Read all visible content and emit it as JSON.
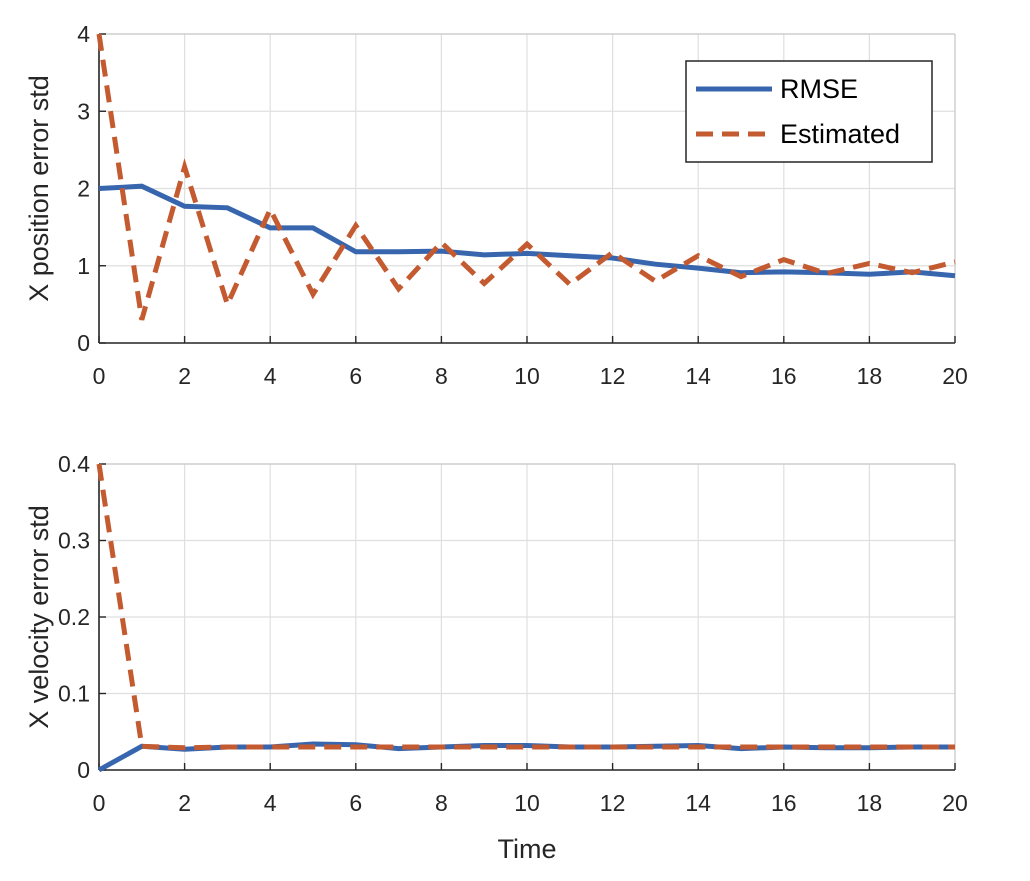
{
  "chart_data": [
    {
      "type": "line",
      "xlabel": "",
      "ylabel": "X position error std",
      "xlim": [
        0,
        20
      ],
      "ylim": [
        0,
        4
      ],
      "xticks": [
        "0",
        "2",
        "4",
        "6",
        "8",
        "10",
        "12",
        "14",
        "16",
        "18",
        "20"
      ],
      "yticks": [
        "0",
        "1",
        "2",
        "3",
        "4"
      ],
      "grid": true,
      "legend_placement": "top-right",
      "series": [
        {
          "name": "RMSE",
          "style": "solid",
          "color": "#3766AE",
          "x": [
            0,
            1,
            2,
            3,
            4,
            5,
            6,
            7,
            8,
            9,
            10,
            11,
            12,
            13,
            14,
            15,
            16,
            17,
            18,
            19,
            20
          ],
          "y": [
            2.0,
            2.03,
            1.77,
            1.75,
            1.49,
            1.49,
            1.18,
            1.18,
            1.19,
            1.14,
            1.16,
            1.13,
            1.1,
            1.02,
            0.97,
            0.91,
            0.92,
            0.91,
            0.89,
            0.92,
            0.87
          ]
        },
        {
          "name": "Estimated",
          "style": "dashed",
          "color": "#C45A30",
          "x": [
            0,
            1,
            2,
            3,
            4,
            5,
            6,
            7,
            8,
            9,
            10,
            11,
            12,
            13,
            14,
            15,
            16,
            17,
            18,
            19,
            20
          ],
          "y": [
            4.0,
            0.3,
            2.28,
            0.5,
            1.73,
            0.63,
            1.52,
            0.7,
            1.3,
            0.77,
            1.28,
            0.76,
            1.17,
            0.8,
            1.13,
            0.86,
            1.08,
            0.9,
            1.03,
            0.91,
            1.05
          ]
        }
      ]
    },
    {
      "type": "line",
      "xlabel": "Time",
      "ylabel": "X velocity error std",
      "xlim": [
        0,
        20
      ],
      "ylim": [
        0,
        0.4
      ],
      "xticks": [
        "0",
        "2",
        "4",
        "6",
        "8",
        "10",
        "12",
        "14",
        "16",
        "18",
        "20"
      ],
      "yticks": [
        "0",
        "0.1",
        "0.2",
        "0.3",
        "0.4"
      ],
      "grid": true,
      "series": [
        {
          "name": "RMSE",
          "style": "solid",
          "color": "#3766AE",
          "x": [
            0,
            1,
            2,
            3,
            4,
            5,
            6,
            7,
            8,
            9,
            10,
            11,
            12,
            13,
            14,
            15,
            16,
            17,
            18,
            19,
            20
          ],
          "y": [
            0.0,
            0.031,
            0.027,
            0.03,
            0.03,
            0.034,
            0.033,
            0.028,
            0.03,
            0.032,
            0.032,
            0.03,
            0.03,
            0.031,
            0.032,
            0.028,
            0.03,
            0.029,
            0.029,
            0.03,
            0.03
          ]
        },
        {
          "name": "Estimated",
          "style": "dashed",
          "color": "#C45A30",
          "x": [
            0,
            1,
            2,
            3,
            4,
            5,
            6,
            7,
            8,
            9,
            10,
            11,
            12,
            13,
            14,
            15,
            16,
            17,
            18,
            19,
            20
          ],
          "y": [
            0.4,
            0.031,
            0.029,
            0.03,
            0.03,
            0.03,
            0.03,
            0.03,
            0.03,
            0.03,
            0.03,
            0.03,
            0.03,
            0.03,
            0.03,
            0.03,
            0.03,
            0.03,
            0.03,
            0.03,
            0.03
          ]
        }
      ]
    }
  ]
}
